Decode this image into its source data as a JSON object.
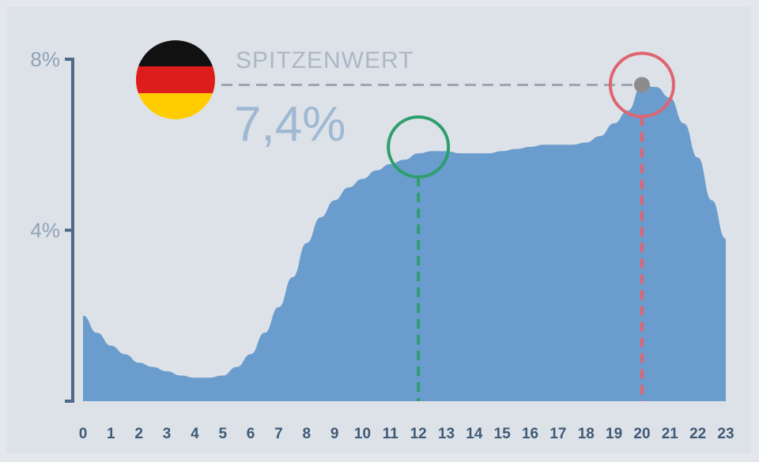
{
  "chart_data": {
    "type": "area",
    "x": [
      0,
      0.5,
      1,
      1.5,
      2,
      2.5,
      3,
      3.5,
      4,
      4.5,
      5,
      5.5,
      6,
      6.5,
      7,
      7.5,
      8,
      8.5,
      9,
      9.5,
      10,
      10.5,
      11,
      11.5,
      12,
      12.5,
      13,
      13.5,
      14,
      14.5,
      15,
      15.5,
      16,
      16.5,
      17,
      17.5,
      18,
      18.5,
      19,
      19.5,
      20,
      20.5,
      21,
      21.5,
      22,
      22.5,
      23
    ],
    "values": [
      2.0,
      1.6,
      1.3,
      1.1,
      0.9,
      0.8,
      0.7,
      0.6,
      0.55,
      0.55,
      0.6,
      0.8,
      1.1,
      1.6,
      2.2,
      2.9,
      3.7,
      4.3,
      4.7,
      5.0,
      5.2,
      5.4,
      5.55,
      5.65,
      5.8,
      5.85,
      5.85,
      5.8,
      5.8,
      5.8,
      5.85,
      5.9,
      5.95,
      6.0,
      6.0,
      6.0,
      6.05,
      6.2,
      6.5,
      6.8,
      7.4,
      7.35,
      7.1,
      6.5,
      5.7,
      4.7,
      3.8
    ],
    "xticks": [
      "0",
      "1",
      "2",
      "3",
      "4",
      "5",
      "6",
      "7",
      "8",
      "9",
      "10",
      "11",
      "12",
      "13",
      "14",
      "15",
      "16",
      "17",
      "18",
      "19",
      "20",
      "21",
      "22",
      "23"
    ],
    "yticks": [
      {
        "value": 4,
        "label": "4%"
      },
      {
        "value": 8,
        "label": "8%"
      }
    ],
    "xlim": [
      0,
      23
    ],
    "ylim": [
      0,
      8
    ],
    "peak": {
      "x": 20,
      "value": 7.4,
      "label": "SPITZENWERT",
      "value_label": "7,4%"
    },
    "marker": {
      "x": 12,
      "value": 5.8
    },
    "grid": false,
    "colors": {
      "area": "#6a9dce",
      "axis": "#4d6a88",
      "marker_green": "#2e9e6c",
      "marker_red": "#e06470",
      "peak_dot": "#8c8c8c",
      "guide": "#9da7b3"
    }
  },
  "flag": {
    "icon": "germany-flag-icon",
    "colors": [
      "#111111",
      "#dd1c1c",
      "#ffcc00"
    ]
  }
}
